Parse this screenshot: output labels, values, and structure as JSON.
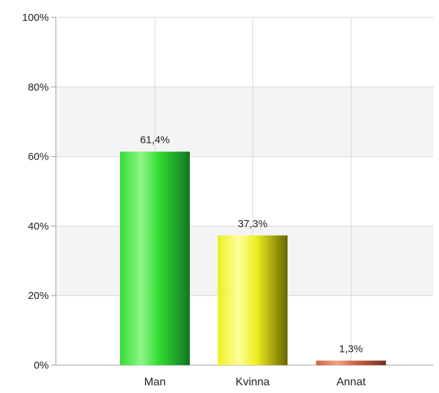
{
  "chart_data": {
    "type": "bar",
    "title": "",
    "xlabel": "",
    "ylabel": "",
    "categories": [
      "Man",
      "Kvinna",
      "Annat"
    ],
    "values": [
      61.4,
      37.3,
      1.3
    ],
    "data_labels": [
      "61,4%",
      "37,3%",
      "1,3%"
    ],
    "ylim": [
      0,
      100
    ],
    "y_ticks": [
      {
        "value": 0,
        "label": "0%"
      },
      {
        "value": 20,
        "label": "20%"
      },
      {
        "value": 40,
        "label": "40%"
      },
      {
        "value": 60,
        "label": "60%"
      },
      {
        "value": 80,
        "label": "80%"
      },
      {
        "value": 100,
        "label": "100%"
      }
    ],
    "grid": true,
    "legend": "none",
    "bar_colors": [
      {
        "light": "#8ef58a",
        "base": "#33dd33",
        "dark": "#117722"
      },
      {
        "light": "#ffff99",
        "base": "#eeee22",
        "dark": "#666600"
      },
      {
        "light": "#f2a285",
        "base": "#cc6644",
        "dark": "#772e22"
      }
    ]
  }
}
